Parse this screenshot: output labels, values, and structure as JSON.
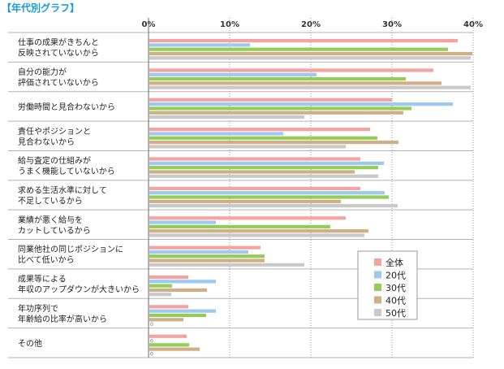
{
  "title": "【年代別グラフ】",
  "chart_data": {
    "type": "bar",
    "orientation": "horizontal",
    "title": "【年代別グラフ】",
    "xlabel": "",
    "ylabel": "",
    "xlim": [
      0,
      40
    ],
    "x_ticks": [
      "0%",
      "10%",
      "20%",
      "30%",
      "40%"
    ],
    "x_tick_values": [
      0,
      10,
      20,
      30,
      40
    ],
    "grid": "vertical dotted",
    "legend_position": "bottom-right",
    "categories": [
      [
        "仕事の成果がきちんと",
        "反映されていないから"
      ],
      [
        "自分の能力が",
        "評価されていないから"
      ],
      [
        "労働時間と見合わないから"
      ],
      [
        "責任やポジションと",
        "見合わないから"
      ],
      [
        "給与査定の仕組みが",
        "うまく機能していないから"
      ],
      [
        "求める生活水準に対して",
        "不足しているから"
      ],
      [
        "業績が悪く給与を",
        "カットしているから"
      ],
      [
        "同業他社の同じポジションに",
        "比べて低いから"
      ],
      [
        "成果等による",
        "年収のアップダウンが大きいから"
      ],
      [
        "年功序列で",
        "年齢給の比率が高いから"
      ],
      [
        "その他"
      ]
    ],
    "series": [
      {
        "name": "全体",
        "color": "#f4a3a0",
        "values": [
          38,
          35,
          29.9,
          27.2,
          26,
          26,
          24.2,
          13.7,
          4.8,
          4.8,
          4.6
        ]
      },
      {
        "name": "20代",
        "color": "#9dc9ef",
        "values": [
          12.4,
          20.6,
          37.4,
          16.5,
          28.9,
          29,
          8.2,
          12.2,
          8.2,
          8.2,
          0
        ]
      },
      {
        "name": "30代",
        "color": "#93cd58",
        "values": [
          36.8,
          31.6,
          32.3,
          28.1,
          28.2,
          29.5,
          22.3,
          14.2,
          2.8,
          7,
          4.9
        ]
      },
      {
        "name": "40代",
        "color": "#cfaf85",
        "values": [
          39.8,
          36,
          31.3,
          30.7,
          25.3,
          23.6,
          27,
          14.2,
          7.1,
          4.2,
          6.2
        ]
      },
      {
        "name": "50代",
        "color": "#c9c9c9",
        "values": [
          39.6,
          39.6,
          19.1,
          24.2,
          28.2,
          30.6,
          26.5,
          19.1,
          2.7,
          0,
          0
        ]
      }
    ],
    "zero_labels": [
      {
        "category": 9,
        "series": 4,
        "text": "0"
      },
      {
        "category": 10,
        "series": 1,
        "text": "0"
      },
      {
        "category": 10,
        "series": 4,
        "text": "0"
      }
    ]
  }
}
